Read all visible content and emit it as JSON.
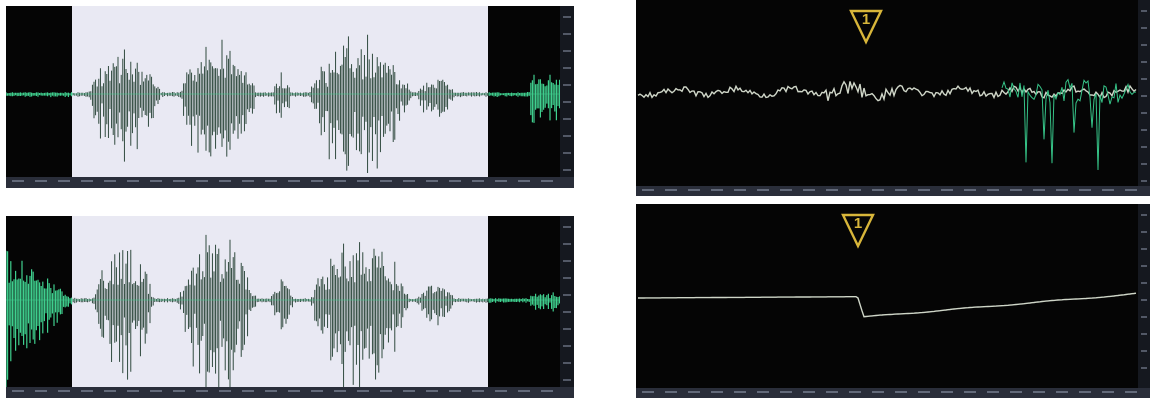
{
  "colors": {
    "background": "#ffffff",
    "panel": "#050505",
    "selection": "#e9e9f3",
    "waveform_active": "#1d3a2c",
    "waveform_idle": "#3fcf8e",
    "ruler": "#2a2e3a",
    "tick_text": "#7c8496",
    "marker": "#d8b63a",
    "trace": "#cfd6c8",
    "trace_noise": "#36c488"
  },
  "icons": {
    "marker": "warning-triangle-icon"
  },
  "panels": [
    {
      "id": "waveform-top",
      "kind": "waveform",
      "has_selection": true
    },
    {
      "id": "waveform-bottom",
      "kind": "waveform",
      "has_selection": true
    },
    {
      "id": "trace-top",
      "kind": "trace",
      "marker_label": "1"
    },
    {
      "id": "trace-bottom",
      "kind": "trace",
      "marker_label": "1"
    }
  ]
}
